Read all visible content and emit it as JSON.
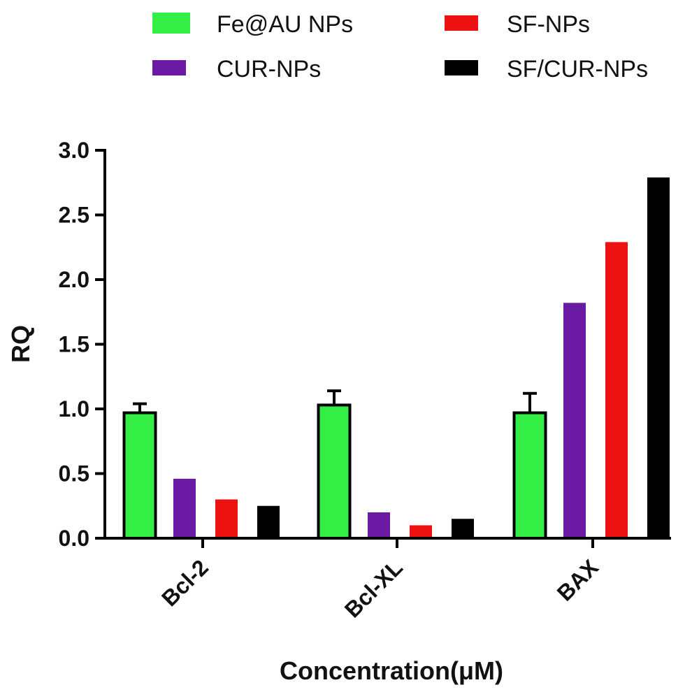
{
  "chart_data": {
    "type": "bar",
    "categories": [
      "Bcl-2",
      "Bcl-XL",
      "BAX"
    ],
    "series": [
      {
        "name": "Fe@AU NPs",
        "values": [
          0.97,
          1.03,
          0.97
        ],
        "errors": [
          0.07,
          0.11,
          0.15
        ],
        "color": "#33ee44",
        "outlined": true
      },
      {
        "name": "CUR-NPs",
        "values": [
          0.46,
          0.2,
          1.82
        ],
        "color": "#6a1aa3"
      },
      {
        "name": "SF-NPs",
        "values": [
          0.3,
          0.1,
          2.29
        ],
        "color": "#ee1111"
      },
      {
        "name": "SF/CUR-NPs",
        "values": [
          0.25,
          0.15,
          2.79
        ],
        "color": "#000000"
      }
    ],
    "xlabel": "Concentration(μM)",
    "ylabel": "RQ",
    "ylim": [
      0,
      3.0
    ],
    "yticks": [
      "0.0",
      "0.5",
      "1.0",
      "1.5",
      "2.0",
      "2.5",
      "3.0"
    ],
    "legend_position": "top",
    "grid": false
  }
}
